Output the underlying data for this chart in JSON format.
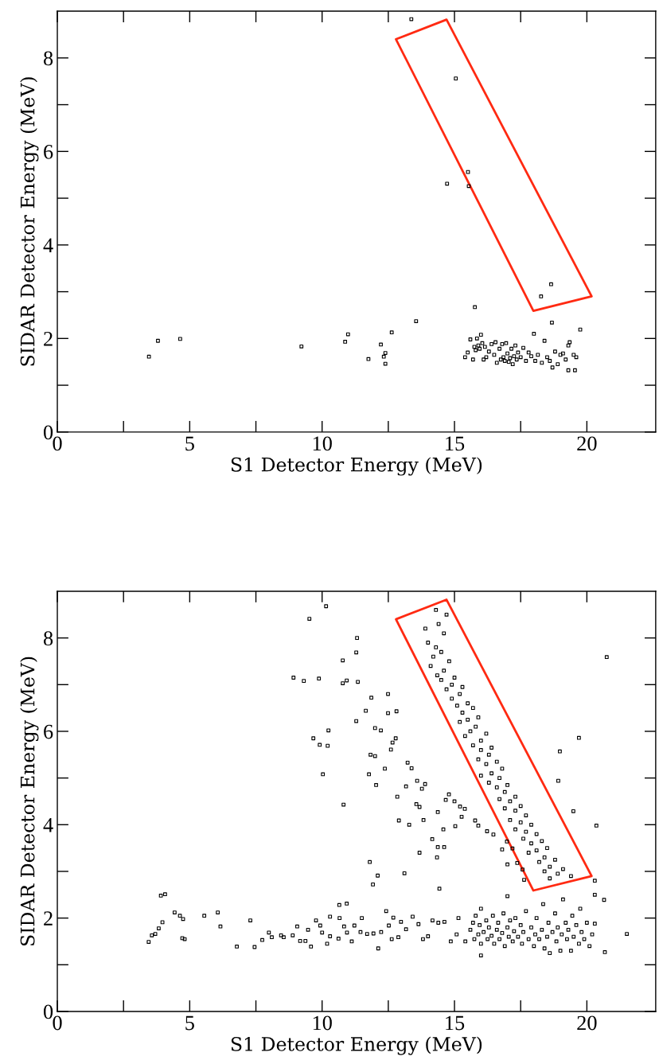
{
  "chart_data": [
    {
      "type": "scatter",
      "xlabel": "S1 Detector Energy (MeV)",
      "ylabel": "SIDAR Detector Energy (MeV)",
      "xlim": [
        0,
        22.6
      ],
      "ylim": [
        0,
        9
      ],
      "xticks": [
        0,
        {
          "value": 2.5,
          "label": null
        },
        5,
        {
          "value": 7.5,
          "label": null
        },
        10,
        {
          "value": 12.5,
          "label": null
        },
        15,
        {
          "value": 17.5,
          "label": null
        },
        20
      ],
      "yticks": [
        0,
        {
          "value": 1,
          "label": null
        },
        2,
        {
          "value": 3,
          "label": null
        },
        4,
        {
          "value": 5,
          "label": null
        },
        6,
        {
          "value": 7,
          "label": null
        },
        8
      ],
      "marker": "square",
      "grid": false,
      "legend": false,
      "series": [
        {
          "type": "scatter",
          "color": "#000000",
          "x": [
            13.37,
            15.05,
            14.72,
            15.51,
            15.54,
            18.27,
            18.65,
            15.77,
            13.55,
            18.68,
            19.75,
            3.46,
            3.8,
            4.64,
            9.22,
            10.98,
            10.87,
            11.75,
            12.22,
            12.39,
            12.33,
            12.39,
            12.63,
            15.4,
            15.5,
            15.6,
            15.7,
            15.75,
            15.8,
            15.85,
            15.9,
            15.95,
            16.0,
            16.05,
            16.1,
            16.15,
            16.2,
            16.3,
            16.4,
            16.5,
            16.55,
            16.6,
            16.7,
            16.75,
            16.8,
            16.85,
            16.9,
            16.95,
            17.0,
            17.05,
            17.1,
            17.15,
            17.2,
            17.25,
            17.3,
            17.35,
            17.4,
            17.5,
            17.6,
            17.7,
            17.8,
            17.9,
            18.0,
            18.05,
            18.15,
            18.3,
            18.4,
            18.5,
            18.6,
            18.7,
            18.8,
            18.9,
            19.0,
            19.1,
            19.2,
            19.3,
            19.35,
            19.5,
            19.55,
            19.6,
            19.3
          ],
          "values": [
            8.83,
            7.56,
            5.31,
            5.56,
            5.26,
            2.9,
            3.16,
            2.67,
            2.37,
            2.34,
            2.19,
            1.61,
            1.95,
            1.99,
            1.83,
            2.09,
            1.93,
            1.56,
            1.87,
            1.69,
            1.61,
            1.46,
            2.13,
            1.6,
            1.7,
            1.98,
            1.55,
            1.82,
            1.75,
            2.0,
            1.85,
            1.78,
            2.08,
            1.9,
            1.55,
            1.82,
            1.6,
            1.72,
            1.88,
            1.65,
            1.92,
            1.48,
            1.78,
            1.55,
            1.88,
            1.6,
            1.52,
            1.9,
            1.68,
            1.5,
            1.58,
            1.78,
            1.45,
            1.62,
            1.85,
            1.55,
            1.7,
            1.6,
            1.8,
            1.52,
            1.7,
            1.62,
            2.1,
            1.52,
            1.65,
            1.48,
            1.95,
            1.6,
            1.52,
            1.38,
            1.72,
            1.45,
            1.65,
            1.68,
            1.55,
            1.85,
            1.92,
            1.65,
            1.32,
            1.6,
            1.32
          ]
        }
      ]
    },
    {
      "type": "scatter",
      "xlabel": "S1 Detector Energy (MeV)",
      "ylabel": "SIDAR Detector Energy (MeV)",
      "xlim": [
        0,
        22.6
      ],
      "ylim": [
        0,
        9
      ],
      "xticks": [
        0,
        {
          "value": 2.5,
          "label": null
        },
        5,
        {
          "value": 7.5,
          "label": null
        },
        10,
        {
          "value": 12.5,
          "label": null
        },
        15,
        {
          "value": 17.5,
          "label": null
        },
        20
      ],
      "yticks": [
        0,
        {
          "value": 1,
          "label": null
        },
        2,
        {
          "value": 3,
          "label": null
        },
        4,
        {
          "value": 5,
          "label": null
        },
        6,
        {
          "value": 7,
          "label": null
        },
        8
      ],
      "marker": "square",
      "grid": false,
      "legend": false,
      "series": [
        {
          "type": "scatter",
          "color": "#000000",
          "x": [
            10.15,
            9.52,
            11.32,
            11.29,
            10.78,
            8.92,
            9.31,
            9.88,
            10.93,
            10.78,
            11.35,
            11.29,
            10.24,
            9.67,
            9.91,
            10.21,
            10.03,
            10.81,
            4.07,
            11.86,
            12.49,
            11.65,
            12.49,
            12.81,
            12.0,
            12.22,
            12.78,
            12.66,
            12.6,
            11.83,
            12.0,
            12.37,
            11.77,
            13.23,
            13.38,
            12.04,
            13.59,
            13.89,
            13.77,
            13.17,
            12.84,
            13.56,
            13.68,
            14.37,
            14.79,
            14.67,
            15.0,
            15.21,
            15.39,
            15.27,
            12.9,
            13.29,
            13.83,
            14.58,
            15.03,
            15.78,
            15.9,
            16.23,
            16.47,
            14.16,
            14.37,
            14.61,
            13.68,
            14.34,
            13.11,
            14.43,
            16.98,
            16.8,
            17.19,
            17.37,
            17.57,
            17.63,
            11.8,
            12.1,
            11.92,
            10.93,
            20.75,
            19.7,
            18.98,
            18.92,
            19.49,
            20.36,
            20.3,
            14.3,
            14.7,
            14.4,
            13.9,
            14.6,
            14.0,
            14.3,
            14.5,
            14.2,
            14.8,
            14.1,
            14.6,
            14.35,
            15.0,
            14.5,
            14.9,
            15.3,
            14.7,
            15.2,
            14.9,
            15.5,
            15.1,
            15.7,
            15.3,
            15.9,
            15.5,
            15.2,
            15.8,
            15.6,
            16.2,
            15.4,
            16.0,
            15.7,
            16.4,
            16.0,
            16.3,
            15.9,
            16.6,
            16.2,
            16.8,
            16.4,
            16.0,
            16.7,
            16.3,
            17.0,
            16.6,
            16.9,
            17.3,
            16.7,
            17.1,
            17.5,
            16.9,
            17.3,
            17.7,
            17.1,
            17.5,
            17.9,
            17.3,
            17.7,
            18.1,
            17.6,
            18.3,
            17.9,
            18.5,
            18.1,
            17.8,
            18.4,
            18.8,
            18.2,
            18.6,
            19.1,
            18.4,
            18.9,
            19.4,
            18.6,
            3.45,
            3.57,
            3.7,
            3.83,
            3.97,
            3.91,
            4.43,
            4.63,
            4.75,
            4.72,
            4.81,
            5.55,
            6.06,
            6.16,
            6.78,
            7.29,
            7.45,
            7.74,
            7.99,
            8.1,
            8.45,
            8.55,
            8.89,
            9.06,
            9.17,
            9.37,
            9.47,
            9.58,
            9.77,
            9.93,
            10.0,
            10.19,
            10.3,
            10.3,
            10.65,
            10.66,
            10.62,
            10.83,
            10.94,
            11.12,
            11.22,
            11.45,
            11.5,
            11.7,
            11.94,
            12.12,
            12.23,
            12.42,
            12.52,
            12.63,
            12.69,
            12.88,
            12.98,
            13.17,
            13.42,
            13.64,
            13.81,
            14.0,
            14.17,
            14.39,
            14.62,
            14.86,
            15.08,
            15.15,
            15.41,
            17.0,
            17.0,
            20.65,
            21.51,
            20.68,
            20.3,
            15.6,
            15.7,
            15.75,
            15.8,
            15.9,
            15.95,
            16.0,
            16.0,
            16.1,
            16.2,
            16.25,
            16.3,
            16.4,
            16.45,
            16.5,
            16.6,
            16.65,
            16.7,
            16.8,
            16.85,
            16.9,
            17.0,
            17.05,
            17.1,
            17.2,
            17.25,
            17.3,
            17.4,
            17.5,
            17.55,
            17.6,
            17.7,
            17.8,
            17.9,
            18.0,
            18.05,
            18.1,
            18.2,
            18.3,
            18.35,
            18.4,
            18.5,
            18.55,
            18.6,
            18.7,
            18.8,
            18.85,
            18.9,
            19.0,
            19.05,
            19.1,
            19.2,
            19.25,
            19.3,
            19.4,
            19.45,
            19.5,
            19.6,
            19.7,
            19.75,
            19.8,
            19.9,
            20.0,
            20.1,
            20.2,
            20.3,
            16.0
          ],
          "values": [
            8.68,
            8.41,
            8.0,
            7.69,
            7.52,
            7.15,
            7.08,
            7.13,
            7.09,
            7.03,
            7.06,
            6.22,
            6.02,
            5.85,
            5.71,
            5.69,
            5.08,
            4.43,
            2.51,
            6.72,
            6.8,
            6.44,
            6.39,
            6.43,
            6.07,
            6.02,
            5.85,
            5.76,
            5.61,
            5.5,
            5.47,
            5.2,
            5.08,
            5.33,
            5.21,
            4.85,
            4.94,
            4.87,
            4.77,
            4.82,
            4.6,
            4.44,
            4.38,
            4.27,
            4.65,
            4.53,
            4.5,
            4.39,
            4.34,
            4.17,
            4.09,
            4.0,
            4.1,
            3.9,
            3.97,
            4.09,
            3.98,
            3.86,
            3.79,
            3.69,
            3.52,
            3.52,
            3.4,
            3.3,
            2.96,
            2.63,
            3.64,
            3.47,
            3.49,
            3.18,
            3.04,
            2.82,
            3.2,
            2.91,
            2.72,
            2.31,
            7.59,
            5.86,
            5.57,
            4.94,
            4.29,
            3.98,
            2.8,
            8.6,
            8.5,
            8.3,
            8.2,
            8.1,
            7.9,
            7.8,
            7.7,
            7.6,
            7.5,
            7.4,
            7.3,
            7.2,
            7.15,
            7.1,
            7.0,
            6.95,
            6.9,
            6.8,
            6.7,
            6.6,
            6.55,
            6.5,
            6.4,
            6.3,
            6.25,
            6.2,
            6.1,
            6.0,
            5.95,
            5.9,
            5.8,
            5.7,
            5.65,
            5.6,
            5.5,
            5.4,
            5.35,
            5.3,
            5.2,
            5.1,
            5.05,
            5.0,
            4.9,
            4.85,
            4.8,
            4.7,
            4.6,
            4.55,
            4.5,
            4.4,
            4.35,
            4.3,
            4.2,
            4.1,
            4.05,
            4.0,
            3.9,
            3.85,
            3.8,
            3.7,
            3.65,
            3.6,
            3.5,
            3.45,
            3.4,
            3.3,
            3.25,
            3.2,
            3.1,
            3.05,
            3.0,
            2.95,
            2.9,
            2.85,
            1.49,
            1.63,
            1.66,
            1.78,
            1.91,
            2.48,
            2.12,
            2.05,
            1.98,
            1.57,
            1.55,
            2.05,
            2.12,
            1.82,
            1.39,
            1.95,
            1.38,
            1.53,
            1.69,
            1.59,
            1.63,
            1.59,
            1.63,
            1.82,
            1.51,
            1.51,
            1.75,
            1.39,
            1.95,
            1.84,
            1.69,
            1.45,
            2.03,
            1.61,
            2.28,
            2.0,
            1.56,
            1.82,
            1.69,
            1.5,
            1.84,
            1.7,
            2.0,
            1.66,
            1.67,
            1.35,
            1.7,
            2.15,
            1.84,
            1.55,
            2.01,
            1.59,
            1.92,
            1.76,
            2.03,
            1.87,
            1.55,
            1.61,
            1.95,
            1.9,
            1.92,
            1.5,
            1.65,
            2.0,
            1.5,
            2.47,
            3.15,
            2.39,
            1.66,
            1.27,
            1.88,
            1.75,
            1.9,
            1.55,
            2.05,
            1.65,
            1.85,
            1.45,
            2.2,
            1.7,
            1.95,
            1.55,
            1.8,
            1.62,
            2.05,
            1.45,
            1.75,
            1.9,
            1.55,
            1.68,
            2.1,
            1.4,
            1.8,
            1.6,
            1.95,
            1.5,
            1.72,
            2.0,
            1.6,
            1.85,
            1.45,
            1.7,
            2.15,
            1.55,
            1.8,
            1.4,
            1.65,
            2.0,
            1.55,
            1.75,
            2.3,
            1.35,
            1.6,
            1.9,
            1.25,
            1.7,
            2.1,
            1.5,
            1.8,
            1.3,
            1.65,
            2.4,
            1.9,
            1.55,
            1.75,
            1.3,
            2.05,
            1.6,
            1.85,
            1.45,
            2.2,
            1.7,
            1.55,
            1.9,
            1.4,
            1.65,
            2.5,
            1.2
          ]
        }
      ]
    }
  ]
}
